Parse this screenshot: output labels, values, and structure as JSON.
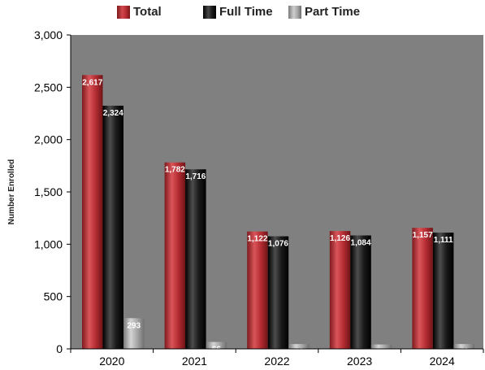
{
  "chart_data": {
    "type": "bar",
    "categories": [
      "2020",
      "2021",
      "2022",
      "2023",
      "2024"
    ],
    "series": [
      {
        "name": "Total",
        "values": [
          2617,
          1782,
          1122,
          1126,
          1157
        ],
        "labels": [
          "2,617",
          "1,782",
          "1,122",
          "1,126",
          "1,157"
        ],
        "color": "#c0323a"
      },
      {
        "name": "Full Time",
        "values": [
          2324,
          1716,
          1076,
          1084,
          1111
        ],
        "labels": [
          "2,324",
          "1,716",
          "1,076",
          "1,084",
          "1,111"
        ],
        "color": "#111111"
      },
      {
        "name": "Part Time",
        "values": [
          293,
          66,
          46,
          42,
          46
        ],
        "labels": [
          "293",
          "66",
          "46",
          "42",
          "46"
        ],
        "color": "#a0a0a0"
      }
    ],
    "ylabel": "Number Enrolled",
    "ylim": [
      0,
      3000
    ],
    "yticks": [
      0,
      500,
      1000,
      1500,
      2000,
      2500,
      3000
    ],
    "ytick_labels": [
      "0",
      "500",
      "1,000",
      "1,500",
      "2,000",
      "2,500",
      "3,000"
    ],
    "grid": false,
    "legend_position": "top",
    "plot_background": "#808080"
  }
}
